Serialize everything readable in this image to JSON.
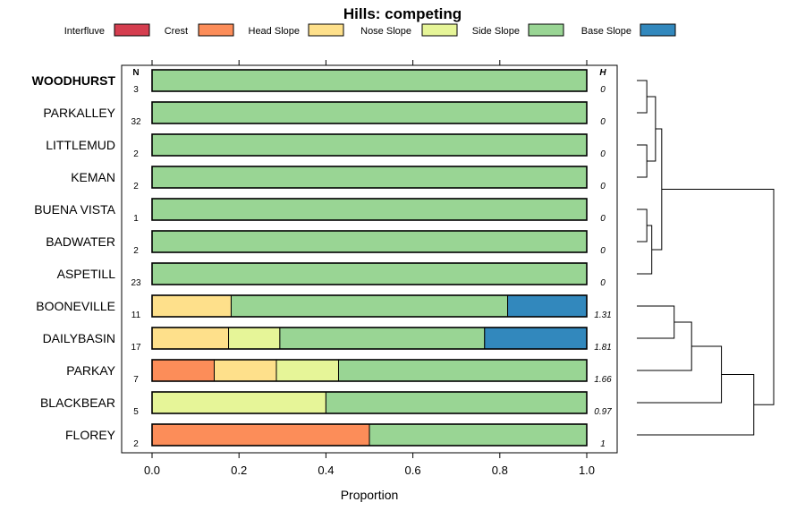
{
  "chart_data": {
    "type": "bar",
    "stacked": true,
    "orientation": "horizontal",
    "title": "Hills: competing",
    "xlabel": "Proportion",
    "ylabel": "",
    "xlim": [
      0,
      1
    ],
    "x_ticks": [
      0.0,
      0.2,
      0.4,
      0.6,
      0.8,
      1.0
    ],
    "x_tick_labels": [
      "0.0",
      "0.2",
      "0.4",
      "0.6",
      "0.8",
      "1.0"
    ],
    "n_header": "N",
    "h_header": "H",
    "legend_position": "top",
    "series": [
      {
        "name": "Interfluve",
        "color": "#D53E4F"
      },
      {
        "name": "Crest",
        "color": "#FC8D59"
      },
      {
        "name": "Head Slope",
        "color": "#FEE08B"
      },
      {
        "name": "Nose Slope",
        "color": "#E6F598"
      },
      {
        "name": "Side Slope",
        "color": "#99D594"
      },
      {
        "name": "Base Slope",
        "color": "#3288BD"
      }
    ],
    "categories": [
      "WOODHURST",
      "PARKALLEY",
      "LITTLEMUD",
      "KEMAN",
      "BUENA VISTA",
      "BADWATER",
      "ASPETILL",
      "BOONEVILLE",
      "DAILYBASIN",
      "PARKAY",
      "BLACKBEAR",
      "FLOREY"
    ],
    "highlight": "WOODHURST",
    "rows": [
      {
        "name": "WOODHURST",
        "n": "3",
        "h": "0",
        "values": [
          0,
          0,
          0,
          0,
          1.0,
          0
        ]
      },
      {
        "name": "PARKALLEY",
        "n": "32",
        "h": "0",
        "values": [
          0,
          0,
          0,
          0,
          1.0,
          0
        ]
      },
      {
        "name": "LITTLEMUD",
        "n": "2",
        "h": "0",
        "values": [
          0,
          0,
          0,
          0,
          1.0,
          0
        ]
      },
      {
        "name": "KEMAN",
        "n": "2",
        "h": "0",
        "values": [
          0,
          0,
          0,
          0,
          1.0,
          0
        ]
      },
      {
        "name": "BUENA VISTA",
        "n": "1",
        "h": "0",
        "values": [
          0,
          0,
          0,
          0,
          1.0,
          0
        ]
      },
      {
        "name": "BADWATER",
        "n": "2",
        "h": "0",
        "values": [
          0,
          0,
          0,
          0,
          1.0,
          0
        ]
      },
      {
        "name": "ASPETILL",
        "n": "23",
        "h": "0",
        "values": [
          0,
          0,
          0,
          0,
          1.0,
          0
        ]
      },
      {
        "name": "BOONEVILLE",
        "n": "11",
        "h": "1.31",
        "values": [
          0,
          0,
          0.182,
          0,
          0.636,
          0.182
        ]
      },
      {
        "name": "DAILYBASIN",
        "n": "17",
        "h": "1.81",
        "values": [
          0,
          0,
          0.176,
          0.118,
          0.471,
          0.235
        ]
      },
      {
        "name": "PARKAY",
        "n": "7",
        "h": "1.66",
        "values": [
          0,
          0.143,
          0.143,
          0.143,
          0.571,
          0
        ]
      },
      {
        "name": "BLACKBEAR",
        "n": "5",
        "h": "0.97",
        "values": [
          0,
          0,
          0,
          0.4,
          0.6,
          0
        ]
      },
      {
        "name": "FLOREY",
        "n": "2",
        "h": "1",
        "values": [
          0,
          0.5,
          0,
          0,
          0.5,
          0
        ]
      }
    ],
    "dendrogram": {
      "merges": [
        [
          0,
          1,
          0.04
        ],
        [
          2,
          3,
          0.04
        ],
        [
          4,
          5,
          0.04
        ],
        [
          -3,
          6,
          0.06
        ],
        [
          -1,
          -2,
          0.075
        ],
        [
          -5,
          -4,
          0.1
        ],
        [
          7,
          8,
          0.15
        ],
        [
          -7,
          9,
          0.22
        ],
        [
          -8,
          10,
          0.34
        ],
        [
          -9,
          11,
          0.47
        ],
        [
          -6,
          -10,
          0.55
        ]
      ],
      "max_height": 0.55
    }
  }
}
